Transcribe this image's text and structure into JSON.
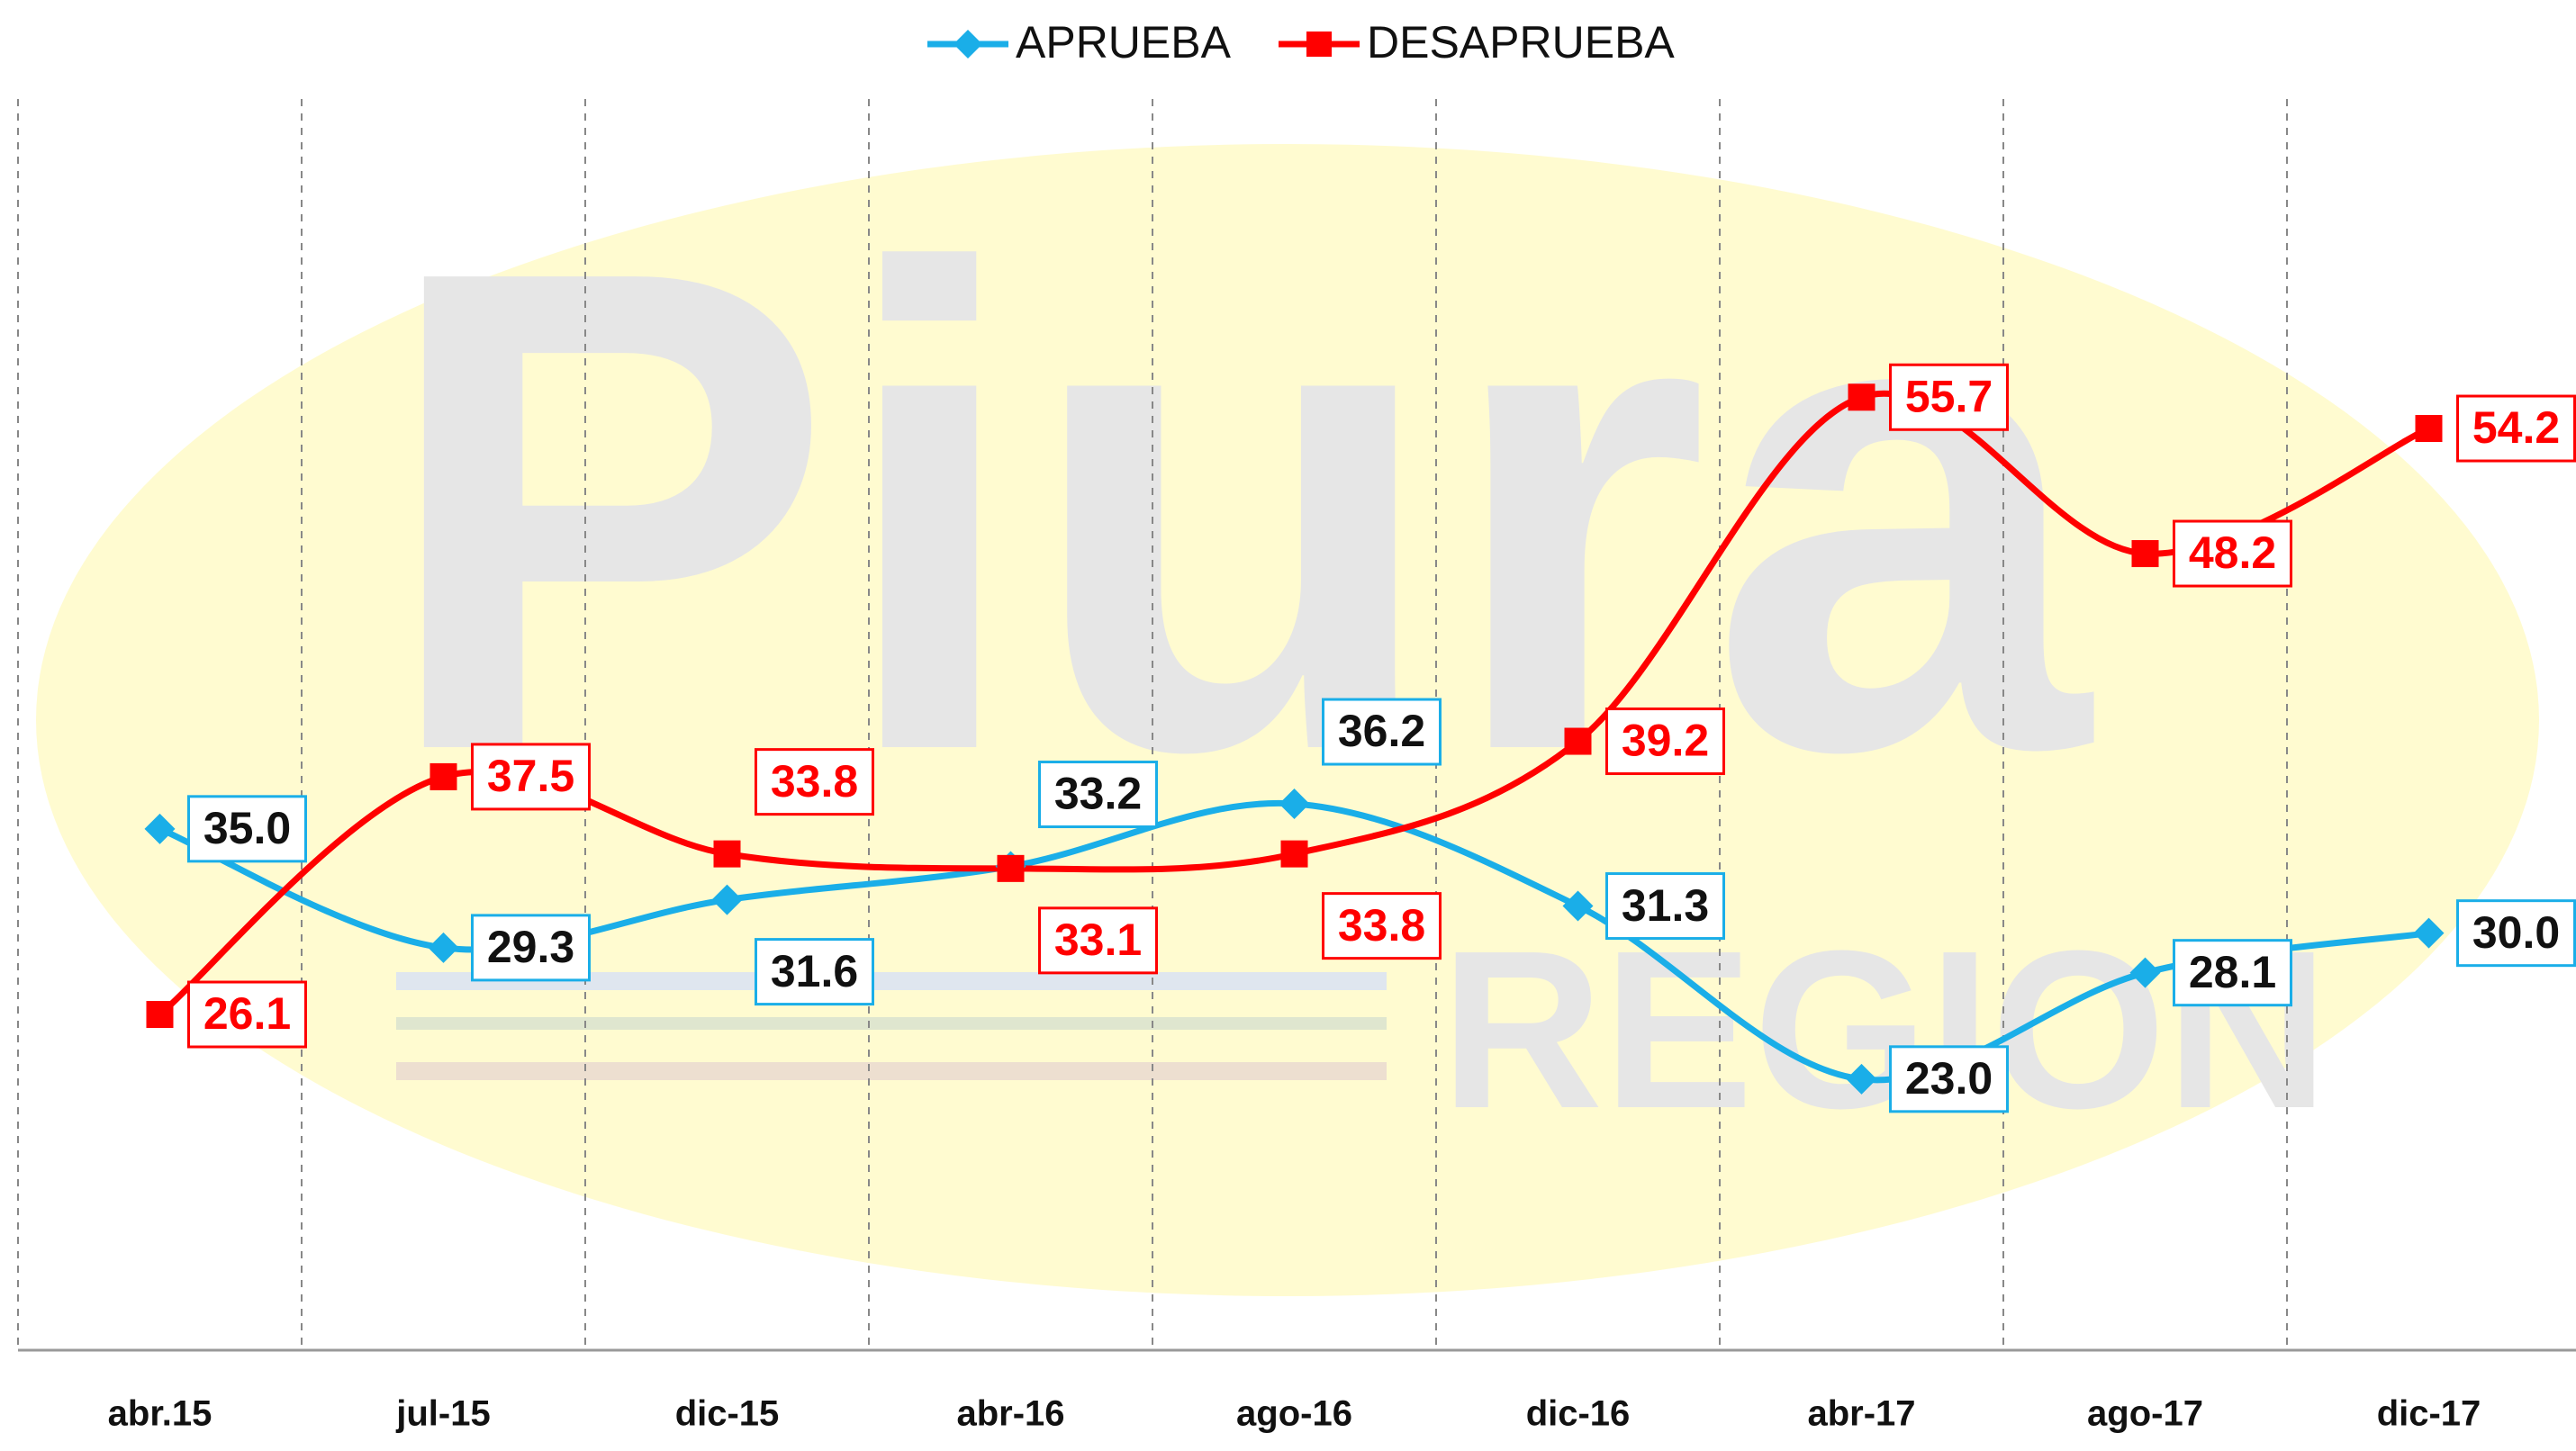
{
  "chart_data": {
    "type": "line",
    "watermark": {
      "text": "Piura",
      "subtext": "REGION"
    },
    "categories": [
      "abr.15",
      "jul-15",
      "dic-15",
      "abr-16",
      "ago-16",
      "dic-16",
      "abr-17",
      "ago-17",
      "dic-17"
    ],
    "series": [
      {
        "name": "APRUEBA",
        "color": "#1aaee8",
        "marker": "diamond",
        "values": [
          35.0,
          29.3,
          31.6,
          33.2,
          36.2,
          31.3,
          23.0,
          28.1,
          30.0
        ],
        "value_labels": [
          "35.0",
          "29.3",
          "31.6",
          "33.2",
          "36.2",
          "31.3",
          "23.0",
          "28.1",
          "30.0"
        ]
      },
      {
        "name": "DESAPRUEBA",
        "color": "#ff0000",
        "marker": "square",
        "values": [
          26.1,
          37.5,
          33.8,
          33.1,
          33.8,
          39.2,
          55.7,
          48.2,
          54.2
        ],
        "value_labels": [
          "26.1",
          "37.5",
          "33.8",
          "33.1",
          "33.8",
          "39.2",
          "55.7",
          "48.2",
          "54.2"
        ]
      }
    ],
    "ylim": [
      10,
      70
    ],
    "smooth": true,
    "legend": "top",
    "grid": "vertical-dashed"
  }
}
